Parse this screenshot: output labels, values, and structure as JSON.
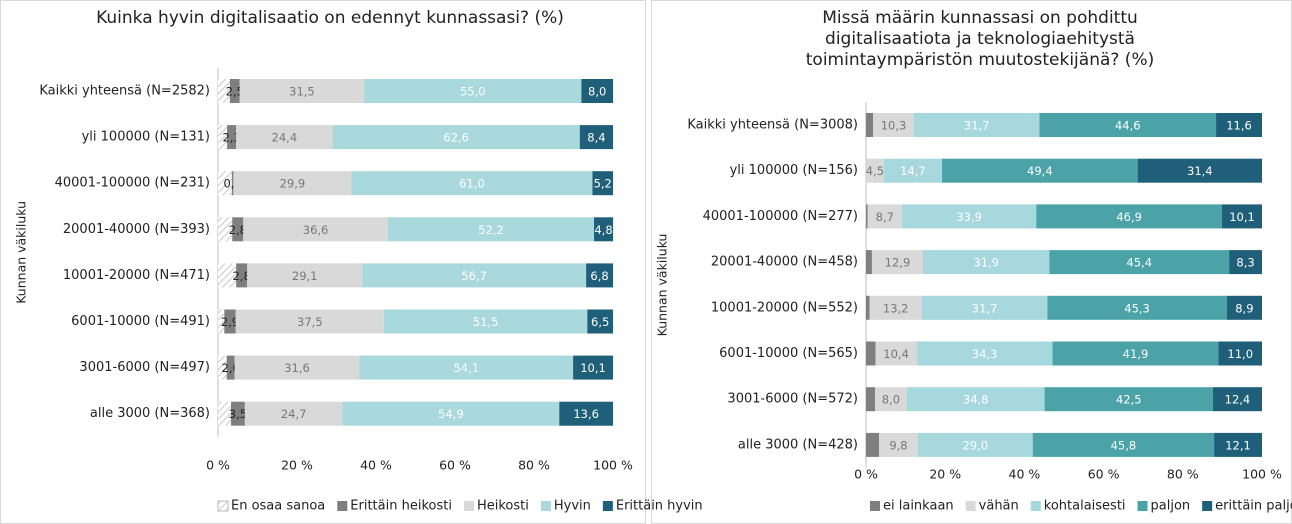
{
  "chart_data": [
    {
      "type": "bar",
      "orientation": "horizontal",
      "stacked": true,
      "title": "Kuinka hyvin digitalisaatio on edennyt kunnassasi? (%)",
      "y_label": "Kunnan väkiluku",
      "categories": [
        "Kaikki yhteensä (N=2582)",
        "yli 100000 (N=131)",
        "40001-100000 (N=231)",
        "20001-40000 (N=393)",
        "10001-20000 (N=471)",
        "6001-10000 (N=491)",
        "3001-6000 (N=497)",
        "alle 3000 (N=368)"
      ],
      "series": [
        {
          "name": "En osaa sanoa",
          "color": "#d0d0d0",
          "hatch": true,
          "values": [
            3.0,
            2.3,
            3.5,
            3.6,
            4.6,
            1.6,
            2.2,
            3.3
          ]
        },
        {
          "name": "Erittäin heikosti",
          "color": "#7f7f7f",
          "values": [
            2.5,
            2.3,
            0.4,
            2.8,
            2.8,
            2.9,
            2.0,
            3.5
          ],
          "value_labels": [
            "2,5",
            "2,3",
            "0,4",
            "2,8",
            "2,8",
            "2,9",
            "2,0",
            "3,5"
          ]
        },
        {
          "name": "Heikosti",
          "color": "#d9d9d9",
          "values": [
            31.5,
            24.4,
            29.9,
            36.6,
            29.1,
            37.5,
            31.6,
            24.7
          ],
          "value_labels": [
            "31,5",
            "24,4",
            "29,9",
            "36,6",
            "29,1",
            "37,5",
            "31,6",
            "24,7"
          ]
        },
        {
          "name": "Hyvin",
          "color": "#a9d8dd",
          "values": [
            55.0,
            62.6,
            61.0,
            52.2,
            56.7,
            51.5,
            54.1,
            54.9
          ],
          "value_labels": [
            "55,0",
            "62,6",
            "61,0",
            "52,2",
            "56,7",
            "51,5",
            "54,1",
            "54,9"
          ]
        },
        {
          "name": "Erittäin hyvin",
          "color": "#1f5f7a",
          "values": [
            8.0,
            8.4,
            5.2,
            4.8,
            6.8,
            6.5,
            10.1,
            13.6
          ],
          "value_labels": [
            "8,0",
            "8,4",
            "5,2",
            "4,8",
            "6,8",
            "6,5",
            "10,1",
            "13,6"
          ]
        }
      ],
      "xlim": [
        0,
        100
      ],
      "xticks": [
        {
          "value": 0,
          "label": "0 %"
        },
        {
          "value": 20,
          "label": "20 %"
        },
        {
          "value": 40,
          "label": "40 %"
        },
        {
          "value": 60,
          "label": "60 %"
        },
        {
          "value": 80,
          "label": "80 %"
        },
        {
          "value": 100,
          "label": "100 %"
        }
      ],
      "legend": "bottom"
    },
    {
      "type": "bar",
      "orientation": "horizontal",
      "stacked": true,
      "title": "Missä määrin kunnassasi on pohdittu digitalisaatiota ja teknologiaehitystä toimintaympäristön muutostekijänä? (%)",
      "y_label": "Kunnan väkiluku",
      "categories": [
        "Kaikki yhteensä (N=3008)",
        "yli 100000 (N=156)",
        "40001-100000 (N=277)",
        "20001-40000 (N=458)",
        "10001-20000 (N=552)",
        "6001-10000 (N=565)",
        "3001-6000 (N=572)",
        "alle 3000 (N=428)"
      ],
      "series": [
        {
          "name": "ei lainkaan",
          "color": "#7f7f7f",
          "values": [
            1.8,
            0,
            0.4,
            1.5,
            0.9,
            2.4,
            2.3,
            3.3
          ]
        },
        {
          "name": "vähän",
          "color": "#d9d9d9",
          "values": [
            10.3,
            4.5,
            8.7,
            12.9,
            13.2,
            10.4,
            8.0,
            9.8
          ],
          "value_labels": [
            "10,3",
            "4,5",
            "8,7",
            "12,9",
            "13,2",
            "10,4",
            "8,0",
            "9,8"
          ]
        },
        {
          "name": "kohtalaisesti",
          "color": "#a6d8dd",
          "values": [
            31.7,
            14.7,
            33.9,
            31.9,
            31.7,
            34.3,
            34.8,
            29.0
          ],
          "value_labels": [
            "31,7",
            "14,7",
            "33,9",
            "31,9",
            "31,7",
            "34,3",
            "34,8",
            "29,0"
          ]
        },
        {
          "name": "paljon",
          "color": "#4ba3a8",
          "values": [
            44.6,
            49.4,
            46.9,
            45.4,
            45.3,
            41.9,
            42.5,
            45.8
          ],
          "value_labels": [
            "44,6",
            "49,4",
            "46,9",
            "45,4",
            "45,3",
            "41,9",
            "42,5",
            "45,8"
          ]
        },
        {
          "name": "erittäin paljon",
          "color": "#1f5f7a",
          "values": [
            11.6,
            31.4,
            10.1,
            8.3,
            8.9,
            11.0,
            12.4,
            12.1
          ],
          "value_labels": [
            "11,6",
            "31,4",
            "10,1",
            "8,3",
            "8,9",
            "11,0",
            "12,4",
            "12,1"
          ]
        }
      ],
      "xlim": [
        0,
        100
      ],
      "xticks": [
        {
          "value": 0,
          "label": "0 %"
        },
        {
          "value": 20,
          "label": "20 %"
        },
        {
          "value": 40,
          "label": "40 %"
        },
        {
          "value": 60,
          "label": "60 %"
        },
        {
          "value": 80,
          "label": "80 %"
        },
        {
          "value": 100,
          "label": "100 %"
        }
      ],
      "legend": "bottom"
    }
  ]
}
